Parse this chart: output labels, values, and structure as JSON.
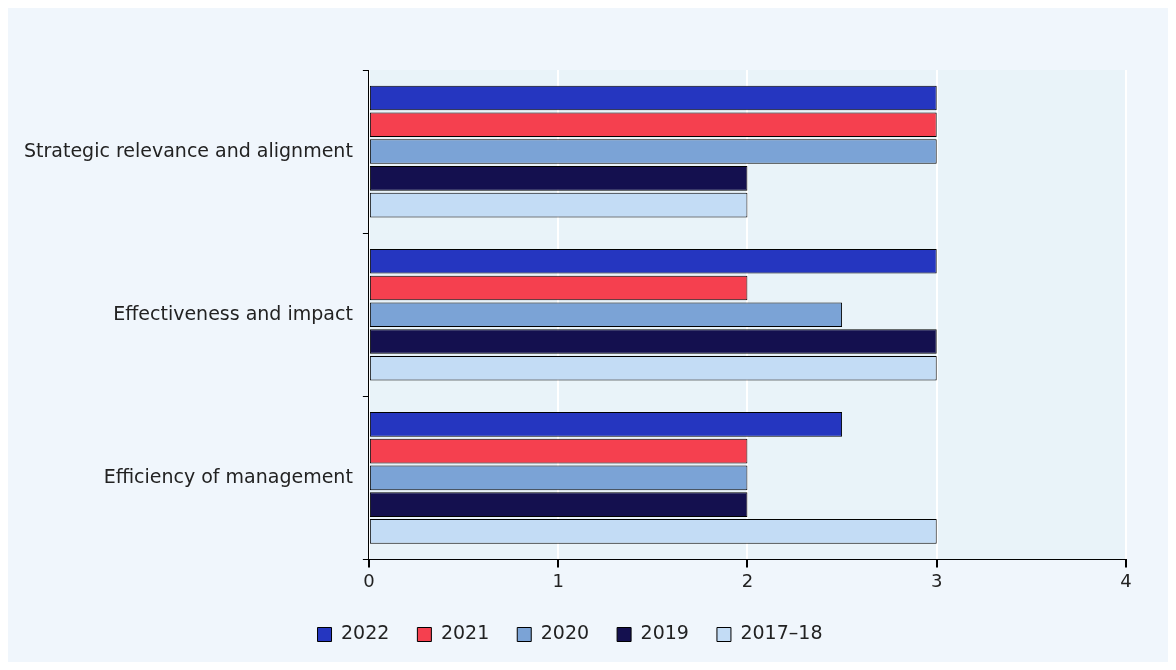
{
  "chart_data": {
    "type": "bar",
    "orientation": "horizontal",
    "categories": [
      "Strategic relevance and alignment",
      "Effectiveness and impact",
      "Efficiency of management"
    ],
    "series": [
      {
        "name": "2022",
        "color": "#2536c0",
        "values": [
          3,
          3,
          2.5
        ]
      },
      {
        "name": "2021",
        "color": "#f5404f",
        "values": [
          3,
          2,
          2
        ]
      },
      {
        "name": "2020",
        "color": "#7ba3d6",
        "values": [
          3,
          2.5,
          2
        ]
      },
      {
        "name": "2019",
        "color": "#14104f",
        "values": [
          2,
          3,
          2
        ]
      },
      {
        "name": "2017–18",
        "color": "#c3dcf5",
        "values": [
          2,
          3,
          3
        ]
      }
    ],
    "xlim": [
      0,
      4
    ],
    "xticks": [
      0,
      1,
      2,
      3,
      4
    ],
    "grid": "x",
    "legend": "bottom"
  }
}
